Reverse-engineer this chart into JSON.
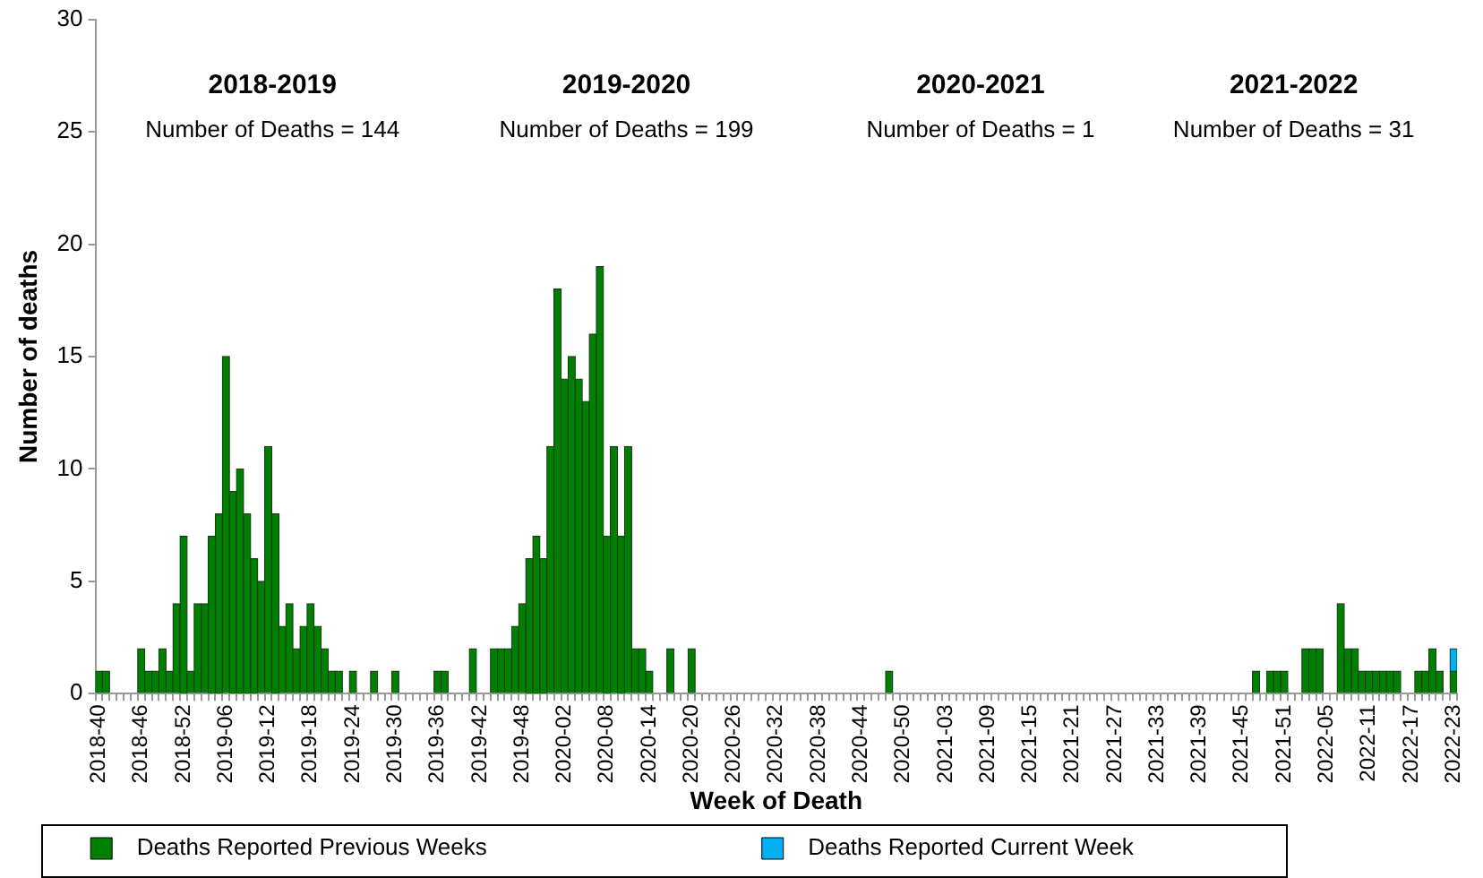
{
  "chart_data": {
    "type": "bar",
    "stacked": true,
    "xlabel": "Week of Death",
    "ylabel": "Number of deaths",
    "ylim": [
      0,
      30
    ],
    "yticks": [
      0,
      5,
      10,
      15,
      20,
      25,
      30
    ],
    "grid": false,
    "legend": "bottom",
    "annotations": [
      "2018-2019",
      "Number of Deaths = 144",
      "2019-2020",
      "Number of Deaths = 199",
      "2020-2021",
      "Number of Deaths = 1",
      "2021-2022",
      "Number of Deaths = 31"
    ],
    "categories": [
      "2018-40",
      null,
      null,
      null,
      null,
      null,
      "2018-46",
      null,
      null,
      null,
      null,
      null,
      "2018-52",
      null,
      null,
      null,
      null,
      null,
      "2019-06",
      null,
      null,
      null,
      null,
      null,
      "2019-12",
      null,
      null,
      null,
      null,
      null,
      "2019-18",
      null,
      null,
      null,
      null,
      null,
      "2019-24",
      null,
      null,
      null,
      null,
      null,
      "2019-30",
      null,
      null,
      null,
      null,
      null,
      "2019-36",
      null,
      null,
      null,
      null,
      null,
      "2019-42",
      null,
      null,
      null,
      null,
      null,
      "2019-48",
      null,
      null,
      null,
      null,
      null,
      "2020-02",
      null,
      null,
      null,
      null,
      null,
      "2020-08",
      null,
      null,
      null,
      null,
      null,
      "2020-14",
      null,
      null,
      null,
      null,
      null,
      "2020-20",
      null,
      null,
      null,
      null,
      null,
      "2020-26",
      null,
      null,
      null,
      null,
      null,
      "2020-32",
      null,
      null,
      null,
      null,
      null,
      "2020-38",
      null,
      null,
      null,
      null,
      null,
      "2020-44",
      null,
      null,
      null,
      null,
      null,
      "2020-50",
      null,
      null,
      null,
      null,
      null,
      "2021-03",
      null,
      null,
      null,
      null,
      null,
      "2021-09",
      null,
      null,
      null,
      null,
      null,
      "2021-15",
      null,
      null,
      null,
      null,
      null,
      "2021-21",
      null,
      null,
      null,
      null,
      null,
      "2021-27",
      null,
      null,
      null,
      null,
      null,
      "2021-33",
      null,
      null,
      null,
      null,
      null,
      "2021-39",
      null,
      null,
      null,
      null,
      null,
      "2021-45",
      null,
      null,
      null,
      null,
      null,
      "2021-51",
      null,
      null,
      null,
      null,
      null,
      "2022-05",
      null,
      null,
      null,
      null,
      null,
      "2022-11",
      null,
      null,
      null,
      null,
      null,
      "2022-17",
      null,
      null,
      null,
      null,
      null,
      "2022-23"
    ],
    "series": [
      {
        "name": "Deaths Reported Previous Weeks",
        "color": "#008000",
        "values": [
          1,
          1,
          0,
          0,
          0,
          0,
          2,
          1,
          1,
          2,
          1,
          4,
          7,
          1,
          4,
          4,
          7,
          8,
          15,
          9,
          10,
          8,
          6,
          5,
          11,
          8,
          3,
          4,
          2,
          3,
          4,
          3,
          2,
          1,
          1,
          0,
          1,
          0,
          0,
          1,
          0,
          0,
          1,
          0,
          0,
          0,
          0,
          0,
          1,
          1,
          0,
          0,
          0,
          2,
          0,
          0,
          2,
          2,
          2,
          3,
          4,
          6,
          7,
          6,
          11,
          18,
          14,
          15,
          14,
          13,
          16,
          19,
          7,
          11,
          7,
          11,
          2,
          2,
          1,
          0,
          0,
          2,
          0,
          0,
          2,
          0,
          0,
          0,
          0,
          0,
          0,
          0,
          0,
          0,
          0,
          0,
          0,
          0,
          0,
          0,
          0,
          0,
          0,
          0,
          0,
          0,
          0,
          0,
          0,
          0,
          0,
          0,
          1,
          0,
          0,
          0,
          0,
          0,
          0,
          0,
          0,
          0,
          0,
          0,
          0,
          0,
          0,
          0,
          0,
          0,
          0,
          0,
          0,
          0,
          0,
          0,
          0,
          0,
          0,
          0,
          0,
          0,
          0,
          0,
          0,
          0,
          0,
          0,
          0,
          0,
          0,
          0,
          0,
          0,
          0,
          0,
          0,
          0,
          0,
          0,
          0,
          0,
          0,
          0,
          1,
          0,
          1,
          1,
          1,
          0,
          0,
          2,
          2,
          2,
          0,
          0,
          4,
          2,
          2,
          1,
          1,
          1,
          1,
          1,
          1,
          0,
          0,
          1,
          1,
          2,
          1,
          0,
          1
        ]
      },
      {
        "name": "Deaths Reported Current Week",
        "color": "#00b0f0",
        "values": [
          0,
          0,
          0,
          0,
          0,
          0,
          0,
          0,
          0,
          0,
          0,
          0,
          0,
          0,
          0,
          0,
          0,
          0,
          0,
          0,
          0,
          0,
          0,
          0,
          0,
          0,
          0,
          0,
          0,
          0,
          0,
          0,
          0,
          0,
          0,
          0,
          0,
          0,
          0,
          0,
          0,
          0,
          0,
          0,
          0,
          0,
          0,
          0,
          0,
          0,
          0,
          0,
          0,
          0,
          0,
          0,
          0,
          0,
          0,
          0,
          0,
          0,
          0,
          0,
          0,
          0,
          0,
          0,
          0,
          0,
          0,
          0,
          0,
          0,
          0,
          0,
          0,
          0,
          0,
          0,
          0,
          0,
          0,
          0,
          0,
          0,
          0,
          0,
          0,
          0,
          0,
          0,
          0,
          0,
          0,
          0,
          0,
          0,
          0,
          0,
          0,
          0,
          0,
          0,
          0,
          0,
          0,
          0,
          0,
          0,
          0,
          0,
          0,
          0,
          0,
          0,
          0,
          0,
          0,
          0,
          0,
          0,
          0,
          0,
          0,
          0,
          0,
          0,
          0,
          0,
          0,
          0,
          0,
          0,
          0,
          0,
          0,
          0,
          0,
          0,
          0,
          0,
          0,
          0,
          0,
          0,
          0,
          0,
          0,
          0,
          0,
          0,
          0,
          0,
          0,
          0,
          0,
          0,
          0,
          0,
          0,
          0,
          0,
          0,
          0,
          0,
          0,
          0,
          0,
          0,
          0,
          0,
          0,
          0,
          0,
          0,
          0,
          0,
          0,
          0,
          0,
          0,
          0,
          0,
          0,
          0,
          0,
          0,
          0,
          0,
          0,
          0,
          1
        ]
      }
    ]
  }
}
